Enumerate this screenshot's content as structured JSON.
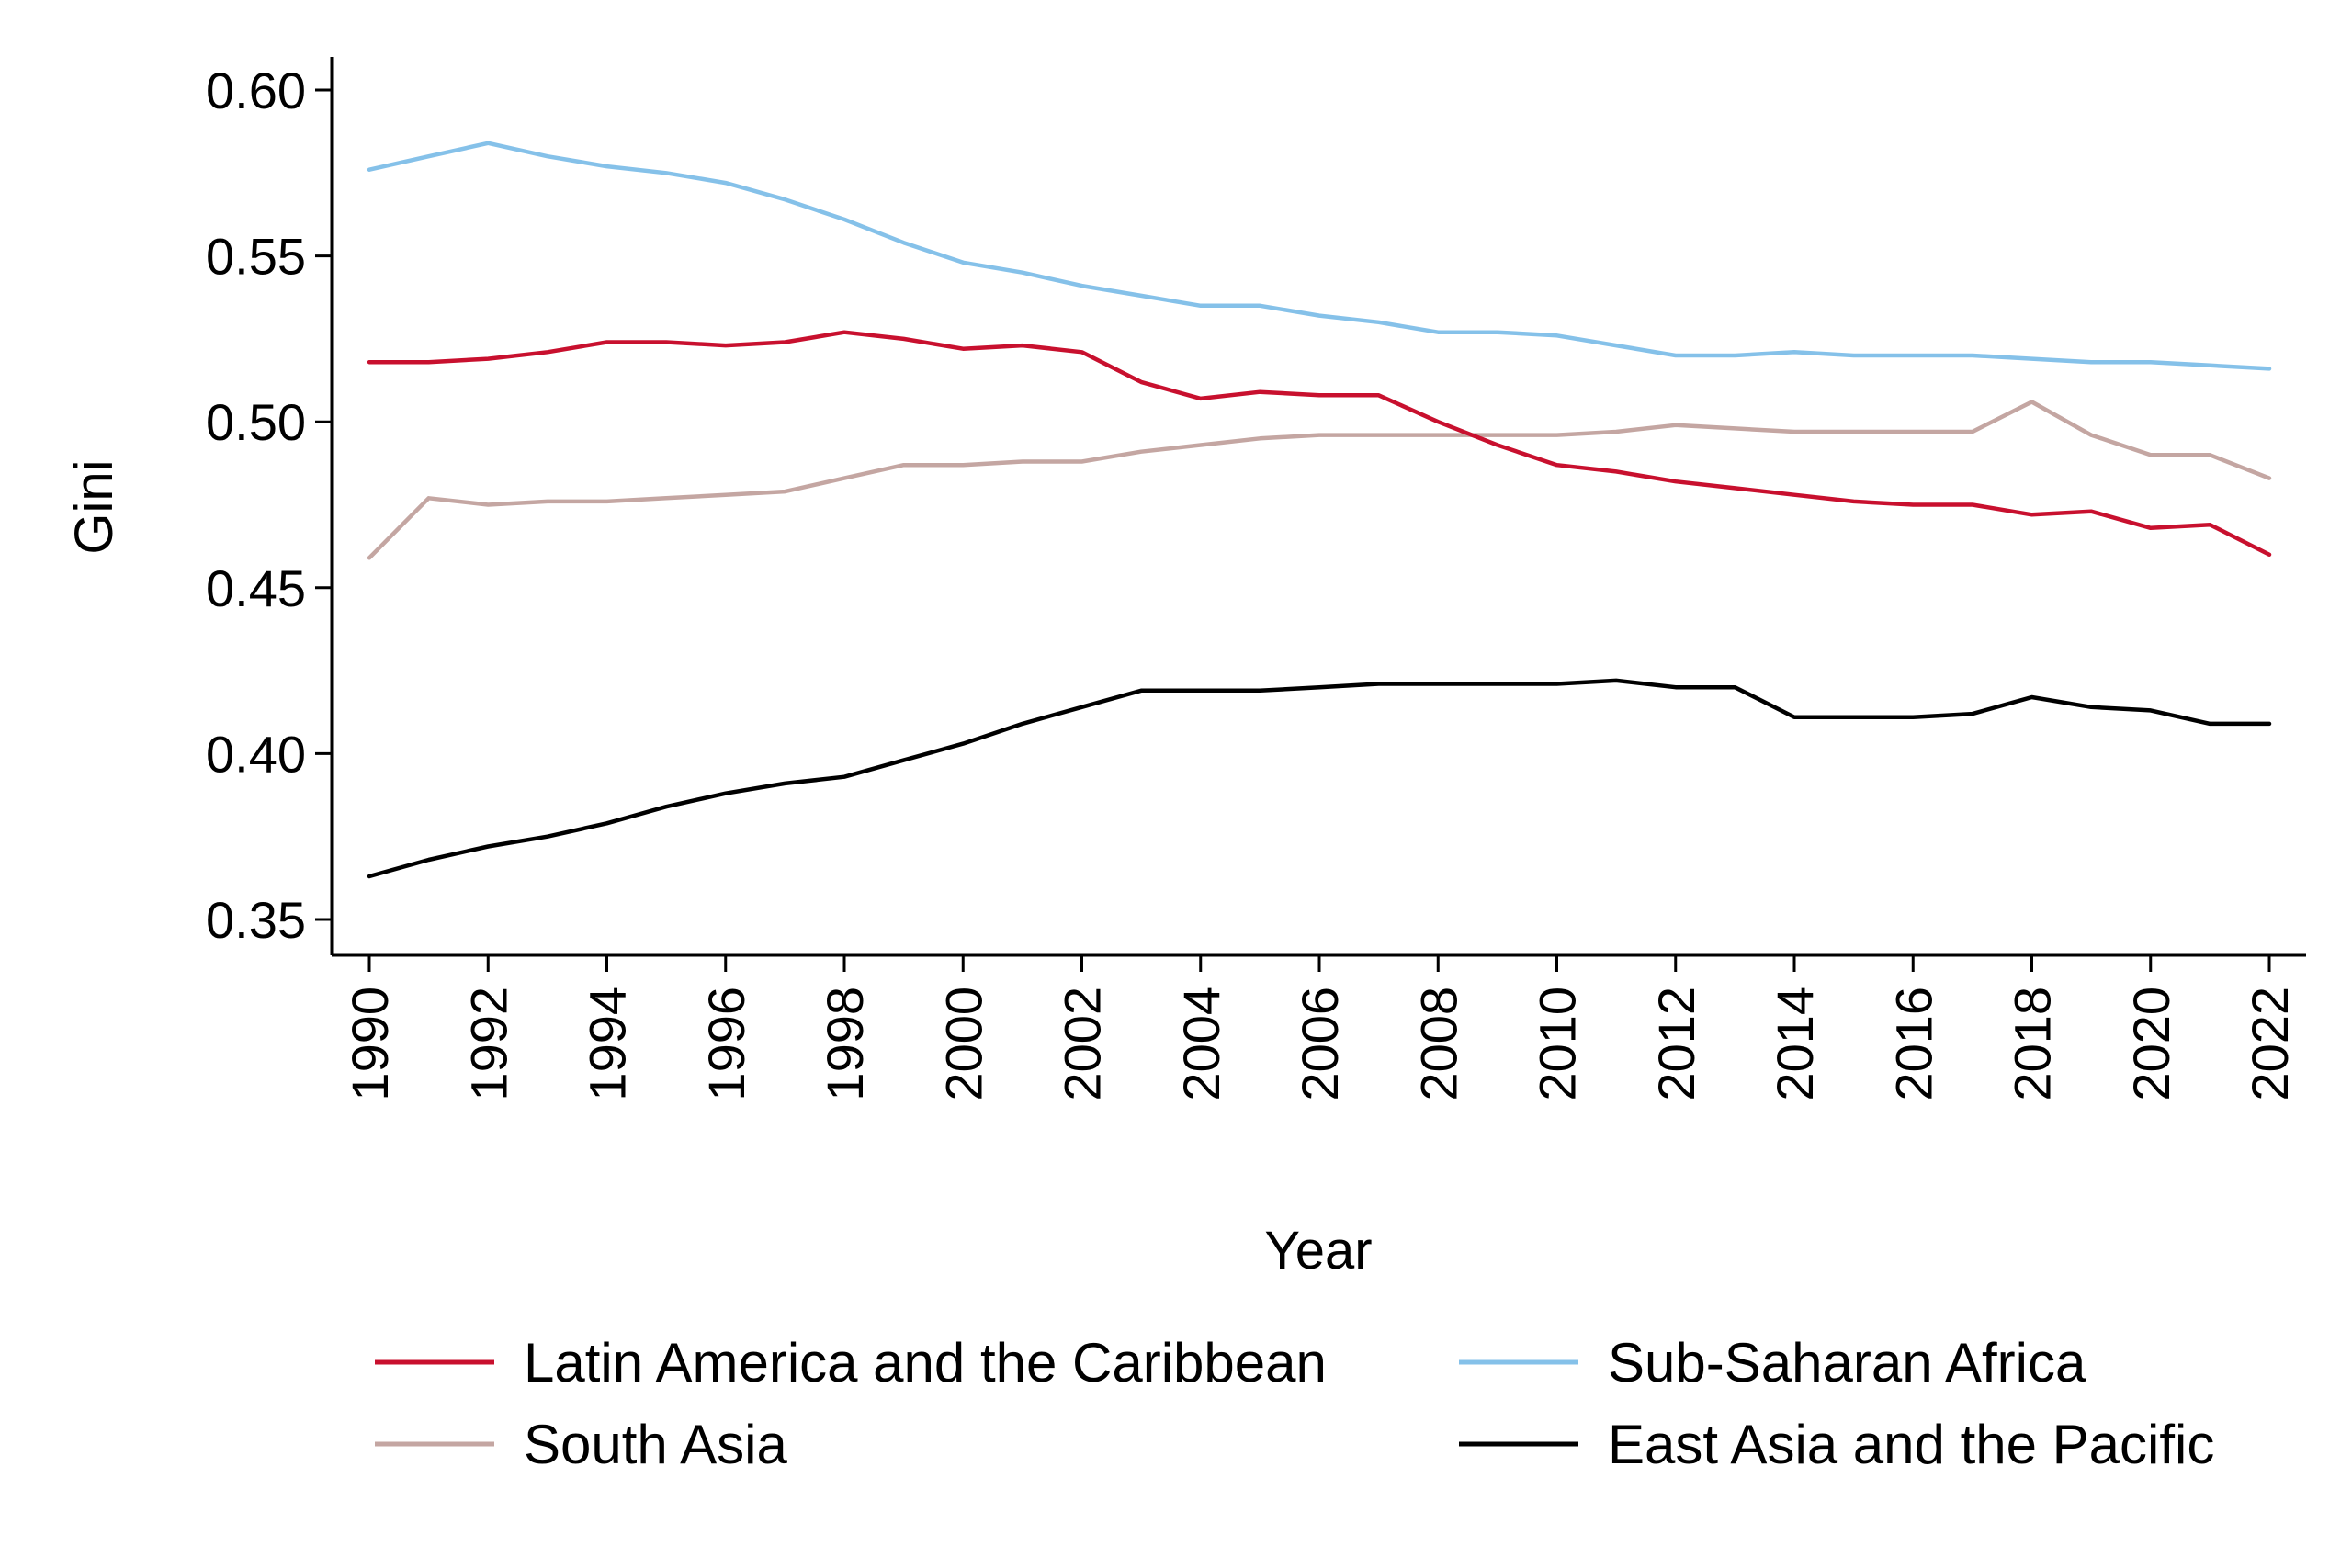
{
  "chart_data": {
    "type": "line",
    "title": "",
    "xlabel": "Year",
    "ylabel": "Gini",
    "xlim": [
      1990,
      2022
    ],
    "ylim": [
      0.35,
      0.61
    ],
    "yticks": [
      0.35,
      0.4,
      0.45,
      0.5,
      0.55,
      0.6
    ],
    "ytick_labels": [
      "0.35",
      "0.40",
      "0.45",
      "0.50",
      "0.55",
      "0.60"
    ],
    "xticks": [
      1990,
      1992,
      1994,
      1996,
      1998,
      2000,
      2002,
      2004,
      2006,
      2008,
      2010,
      2012,
      2014,
      2016,
      2018,
      2020,
      2022
    ],
    "xtick_labels": [
      "1990",
      "1992",
      "1994",
      "1996",
      "1998",
      "2000",
      "2002",
      "2004",
      "2006",
      "2008",
      "2010",
      "2012",
      "2014",
      "2016",
      "2018",
      "2020",
      "2022"
    ],
    "grid": false,
    "legend_position": "bottom",
    "x": [
      1990,
      1991,
      1992,
      1993,
      1994,
      1995,
      1996,
      1997,
      1998,
      1999,
      2000,
      2001,
      2002,
      2003,
      2004,
      2005,
      2006,
      2007,
      2008,
      2009,
      2010,
      2011,
      2012,
      2013,
      2014,
      2015,
      2016,
      2017,
      2018,
      2019,
      2020,
      2021,
      2022
    ],
    "series": [
      {
        "name": "Latin America and the Caribbean",
        "color": "#c8102e",
        "values": [
          0.518,
          0.518,
          0.519,
          0.521,
          0.524,
          0.524,
          0.523,
          0.524,
          0.527,
          0.525,
          0.522,
          0.523,
          0.521,
          0.512,
          0.507,
          0.509,
          0.508,
          0.508,
          0.5,
          0.493,
          0.487,
          0.485,
          0.482,
          0.48,
          0.478,
          0.476,
          0.475,
          0.475,
          0.472,
          0.473,
          0.468,
          0.469,
          0.46
        ]
      },
      {
        "name": "South Asia",
        "color": "#c4a6a2",
        "values": [
          0.459,
          0.477,
          0.475,
          0.476,
          0.476,
          0.477,
          0.478,
          0.479,
          0.483,
          0.487,
          0.487,
          0.488,
          0.488,
          0.491,
          0.493,
          0.495,
          0.496,
          0.496,
          0.496,
          0.496,
          0.496,
          0.497,
          0.499,
          0.498,
          0.497,
          0.497,
          0.497,
          0.497,
          0.506,
          0.496,
          0.49,
          0.49,
          0.483
        ]
      },
      {
        "name": "Sub-Saharan Africa",
        "color": "#85c1e9",
        "values": [
          0.576,
          0.58,
          0.584,
          0.58,
          0.577,
          0.575,
          0.572,
          0.567,
          0.561,
          0.554,
          0.548,
          0.545,
          0.541,
          0.538,
          0.535,
          0.535,
          0.532,
          0.53,
          0.527,
          0.527,
          0.526,
          0.523,
          0.52,
          0.52,
          0.521,
          0.52,
          0.52,
          0.52,
          0.519,
          0.518,
          0.518,
          0.517,
          0.516
        ]
      },
      {
        "name": "East Asia and the Pacific",
        "color": "#000000",
        "values": [
          0.363,
          0.368,
          0.372,
          0.375,
          0.379,
          0.384,
          0.388,
          0.391,
          0.393,
          0.398,
          0.403,
          0.409,
          0.414,
          0.419,
          0.419,
          0.419,
          0.42,
          0.421,
          0.421,
          0.421,
          0.421,
          0.422,
          0.42,
          0.42,
          0.411,
          0.411,
          0.411,
          0.412,
          0.417,
          0.414,
          0.413,
          0.409,
          0.409
        ]
      }
    ],
    "legend": {
      "columns": 2,
      "order": [
        0,
        2,
        1,
        3
      ]
    }
  }
}
